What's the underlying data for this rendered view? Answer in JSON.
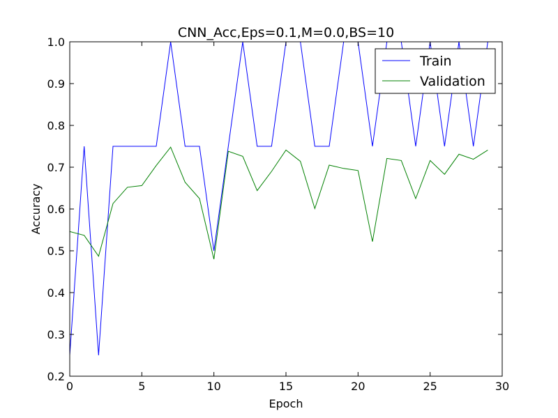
{
  "chart_data": {
    "type": "line",
    "title": "CNN_Acc,Eps=0.1,M=0.0,BS=10",
    "xlabel": "Epoch",
    "ylabel": "Accuracy",
    "xlim": [
      0,
      30
    ],
    "ylim": [
      0.2,
      1.0
    ],
    "xticks": [
      0,
      5,
      10,
      15,
      20,
      25,
      30
    ],
    "xtick_labels": [
      "0",
      "5",
      "10",
      "15",
      "20",
      "25",
      "30"
    ],
    "yticks": [
      0.2,
      0.3,
      0.4,
      0.5,
      0.6,
      0.7,
      0.8,
      0.9,
      1.0
    ],
    "ytick_labels": [
      "0.2",
      "0.3",
      "0.4",
      "0.5",
      "0.6",
      "0.7",
      "0.8",
      "0.9",
      "1.0"
    ],
    "grid": false,
    "legend_position": "top-right",
    "x": [
      0,
      1,
      2,
      3,
      4,
      5,
      6,
      7,
      8,
      9,
      10,
      11,
      12,
      13,
      14,
      15,
      16,
      17,
      18,
      19,
      20,
      21,
      22,
      23,
      24,
      25,
      26,
      27,
      28,
      29
    ],
    "series": [
      {
        "name": "Train",
        "color": "#0000ff",
        "values": [
          0.25,
          0.75,
          0.25,
          0.75,
          0.75,
          0.75,
          0.75,
          1.0,
          0.75,
          0.75,
          0.5,
          0.75,
          1.0,
          0.75,
          0.75,
          1.0,
          1.0,
          0.75,
          0.75,
          1.0,
          1.0,
          0.75,
          1.0,
          1.0,
          0.75,
          1.0,
          0.75,
          1.0,
          0.75,
          1.0
        ]
      },
      {
        "name": "Validation",
        "color": "#008000",
        "values": [
          0.546,
          0.537,
          0.487,
          0.613,
          0.652,
          0.656,
          0.704,
          0.748,
          0.664,
          0.625,
          0.48,
          0.738,
          0.726,
          0.644,
          0.69,
          0.741,
          0.714,
          0.601,
          0.705,
          0.697,
          0.692,
          0.522,
          0.721,
          0.716,
          0.625,
          0.716,
          0.683,
          0.731,
          0.719,
          0.741
        ]
      }
    ]
  }
}
